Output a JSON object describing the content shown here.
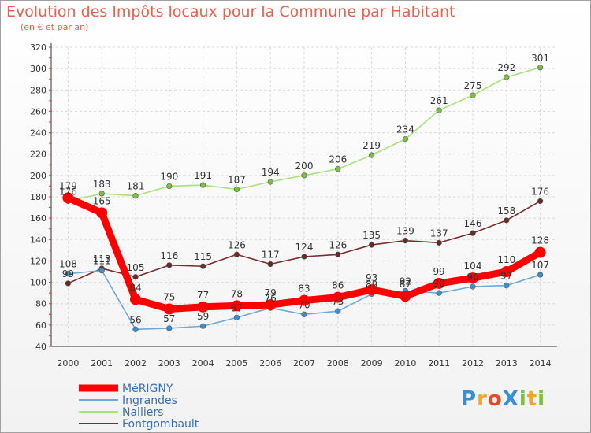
{
  "title": "Evolution des Impôts locaux pour la Commune par Habitant",
  "subtitle": "(en € et par an)",
  "brand": {
    "text": "ProXiti",
    "letters": [
      "P",
      "r",
      "o",
      "X",
      "i",
      "t",
      "i"
    ],
    "letter_colors": [
      "#3a8fd0",
      "#f5a623",
      "#e8491d",
      "#3a8fd0",
      "#7bc043",
      "#f5a623",
      "#7bc043"
    ]
  },
  "chart_data": {
    "type": "line",
    "title": "Evolution des Impôts locaux pour la Commune par Habitant",
    "subtitle": "(en € et par an)",
    "xlabel": "",
    "ylabel": "",
    "ylim": [
      40,
      320
    ],
    "yticks": [
      40,
      60,
      80,
      100,
      120,
      140,
      160,
      180,
      200,
      220,
      240,
      260,
      280,
      300,
      320
    ],
    "x": [
      "2000",
      "2001",
      "2002",
      "2003",
      "2004",
      "2005",
      "2006",
      "2007",
      "2008",
      "2009",
      "2010",
      "2011",
      "2012",
      "2013",
      "2014"
    ],
    "grid": true,
    "legend_position": "bottom-left",
    "series": [
      {
        "name": "Fontgombault",
        "color": "#7a2b2b",
        "dot_color": "#6b2a2a",
        "values": [
          99,
          113,
          105,
          116,
          115,
          126,
          117,
          124,
          126,
          135,
          139,
          137,
          146,
          158,
          176
        ]
      },
      {
        "name": "Nalliers",
        "color": "#a8e07a",
        "dot_color": "#7bc043",
        "values": [
          176,
          183,
          181,
          190,
          191,
          187,
          194,
          200,
          206,
          219,
          234,
          261,
          275,
          292,
          301
        ]
      },
      {
        "name": "Ingrandes",
        "color": "#6ea7d8",
        "dot_color": "#3a8fd0",
        "values": [
          108,
          111,
          56,
          57,
          59,
          67,
          76,
          70,
          73,
          89,
          92,
          90,
          96,
          97,
          107
        ]
      },
      {
        "name": "MéRIGNY",
        "color": "#ff0000",
        "dot_color": "#ff0000",
        "values": [
          179,
          165,
          84,
          75,
          77,
          78,
          79,
          83,
          86,
          93,
          87,
          99,
          104,
          110,
          128
        ]
      }
    ],
    "labels": {
      "Fontgombault": [
        "99",
        "113",
        "105",
        "116",
        "115",
        "126",
        "117",
        "124",
        "126",
        "135",
        "139",
        "137",
        "146",
        "158",
        "176"
      ],
      "Nalliers": [
        "176",
        "183",
        "181",
        "190",
        "191",
        "187",
        "194",
        "200",
        "206",
        "219",
        "234",
        "261",
        "275",
        "292",
        "301"
      ],
      "Ingrandes": [
        "108",
        "111",
        "56",
        "57",
        "59",
        "67",
        "76",
        "70",
        "73",
        "89",
        "92",
        "90",
        "96",
        "97",
        "107"
      ],
      "MéRIGNY": [
        "179",
        "165",
        "84",
        "75",
        "77",
        "78",
        "79",
        "83",
        "86",
        "93",
        "87",
        "99",
        "104",
        "110",
        "128"
      ]
    },
    "legend": [
      "MéRIGNY",
      "Ingrandes",
      "Nalliers",
      "Fontgombault"
    ]
  }
}
